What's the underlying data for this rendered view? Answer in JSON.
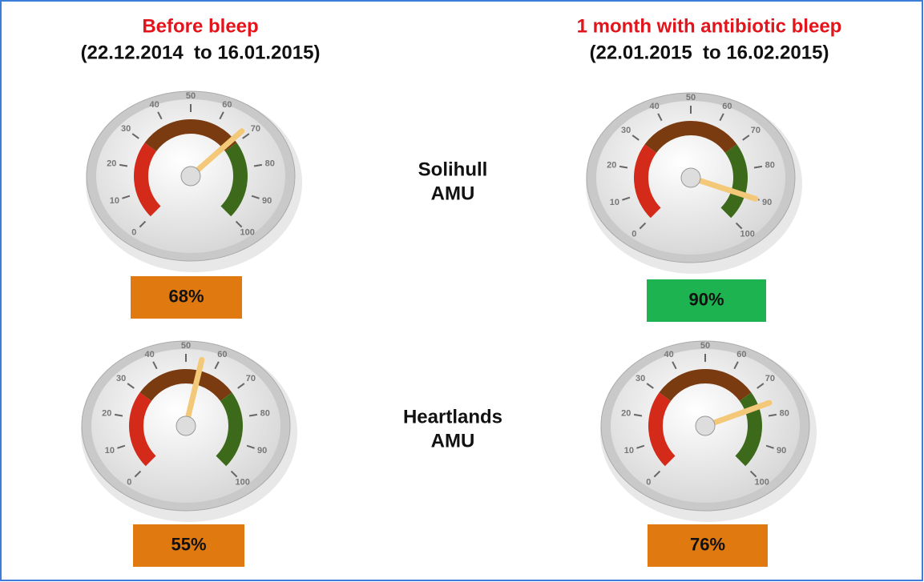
{
  "columns": [
    {
      "title": "Before bleep",
      "dates": "(22.12.2014  to 16.01.2015)"
    },
    {
      "title": "1 month with antibiotic bleep",
      "dates": "(22.01.2015  to 16.02.2015)"
    }
  ],
  "rows": [
    {
      "label": [
        "Solihull",
        "AMU"
      ],
      "values": [
        68,
        90
      ],
      "value_labels": [
        "68%",
        "90%"
      ],
      "colors": [
        "#e07a10",
        "#1db350"
      ]
    },
    {
      "label": [
        "Heartlands",
        "AMU"
      ],
      "values": [
        55,
        76
      ],
      "value_labels": [
        "55%",
        "76%"
      ],
      "colors": [
        "#e07a10",
        "#e07a10"
      ]
    }
  ],
  "gauge": {
    "min": 0,
    "max": 100,
    "ticks": [
      0,
      10,
      20,
      30,
      40,
      50,
      60,
      70,
      80,
      90,
      100
    ]
  }
}
